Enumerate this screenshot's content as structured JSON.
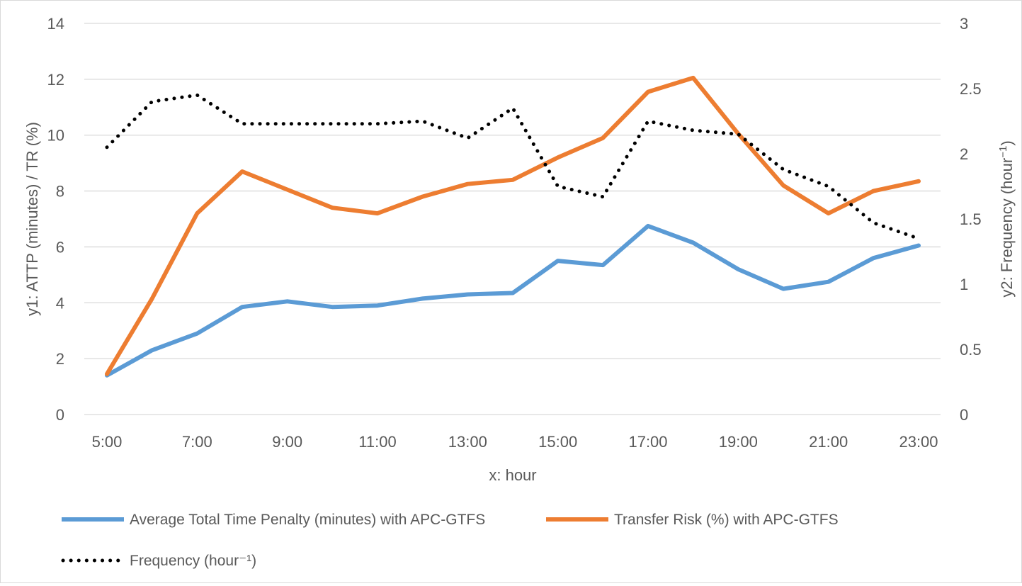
{
  "chart_data": {
    "type": "line",
    "title": "",
    "xlabel": "x: hour",
    "y1label": "y1: ATTP (minutes) / TR (%)",
    "y2label_main": "y2: Frequency (hour",
    "y2label_sup": "−1",
    "y2label_close": ")",
    "x": [
      "5:00",
      "6:00",
      "7:00",
      "8:00",
      "9:00",
      "10:00",
      "11:00",
      "12:00",
      "13:00",
      "14:00",
      "15:00",
      "16:00",
      "17:00",
      "18:00",
      "19:00",
      "20:00",
      "21:00",
      "22:00",
      "23:00"
    ],
    "x_tick_labels": [
      "5:00",
      "7:00",
      "9:00",
      "11:00",
      "13:00",
      "15:00",
      "17:00",
      "19:00",
      "21:00",
      "23:00"
    ],
    "y1_ticks": [
      "0",
      "2",
      "4",
      "6",
      "8",
      "10",
      "12",
      "14"
    ],
    "y2_ticks": [
      "0",
      "0.5",
      "1",
      "1.5",
      "2",
      "2.5",
      "3"
    ],
    "y1lim": [
      0,
      14
    ],
    "y2lim": [
      0,
      3
    ],
    "grid": true,
    "legend_position": "bottom",
    "series": [
      {
        "name": "Average Total Time Penalty (minutes) with APC-GTFS",
        "axis": "y1",
        "style": "solid",
        "color": "#5b9bd5",
        "values": [
          1.4,
          2.3,
          2.9,
          3.85,
          4.05,
          3.85,
          3.9,
          4.15,
          4.3,
          4.35,
          5.5,
          5.35,
          6.75,
          6.15,
          5.2,
          4.5,
          4.75,
          5.6,
          6.05
        ]
      },
      {
        "name": "Transfer Risk (%) with APC-GTFS",
        "axis": "y1",
        "style": "solid",
        "color": "#ed7d31",
        "values": [
          1.45,
          4.15,
          7.2,
          8.7,
          8.05,
          7.4,
          7.2,
          7.8,
          8.25,
          8.4,
          9.2,
          9.9,
          11.55,
          12.05,
          10.05,
          8.2,
          7.2,
          8.0,
          8.35
        ]
      },
      {
        "name": "Frequency (hour⁻¹)",
        "axis": "y2",
        "style": "dotted",
        "color": "#000000",
        "values": [
          2.05,
          2.4,
          2.45,
          2.23,
          2.23,
          2.23,
          2.23,
          2.25,
          2.12,
          2.35,
          1.75,
          1.67,
          2.25,
          2.18,
          2.15,
          1.88,
          1.75,
          1.47,
          1.35
        ]
      }
    ]
  }
}
